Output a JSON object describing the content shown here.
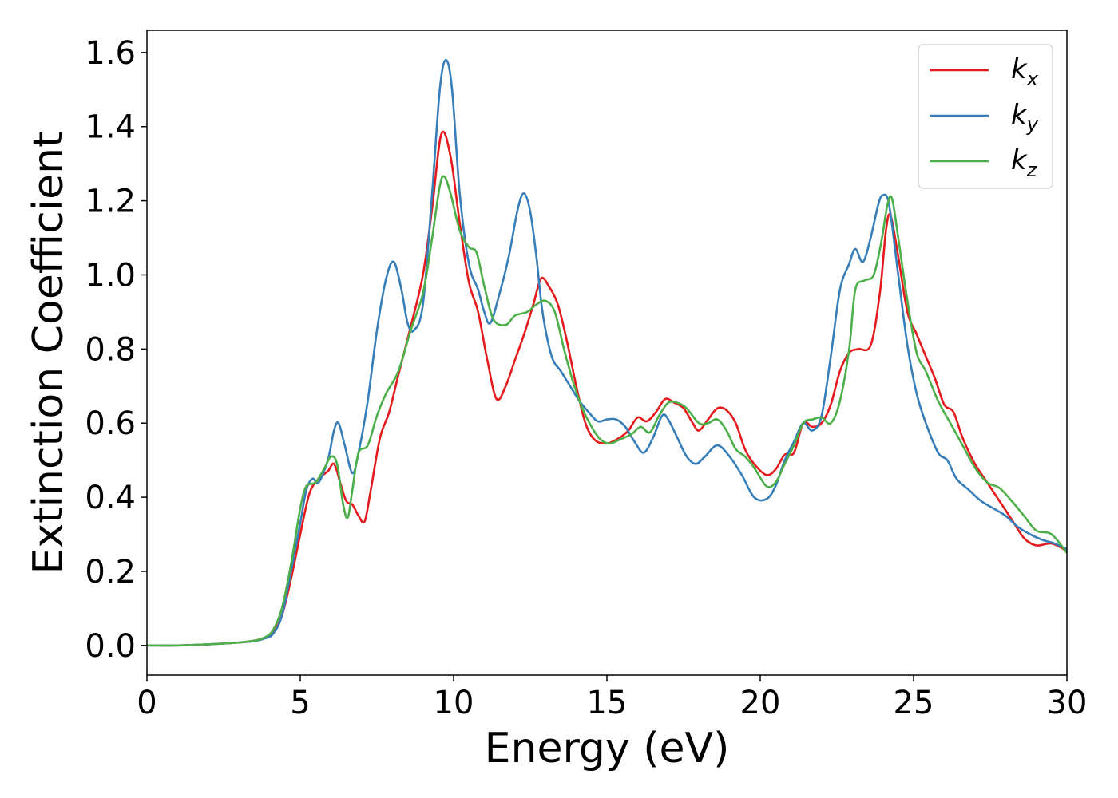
{
  "chart_data": {
    "type": "line",
    "xlabel": "Energy (eV)",
    "ylabel": "Extinction Coefficient",
    "xlim": [
      0,
      30
    ],
    "ylim": [
      -0.08,
      1.66
    ],
    "xticks": [
      0,
      5,
      10,
      15,
      20,
      25,
      30
    ],
    "xtick_labels": [
      "0",
      "5",
      "10",
      "15",
      "20",
      "25",
      "30"
    ],
    "yticks": [
      0.0,
      0.2,
      0.4,
      0.6,
      0.8,
      1.0,
      1.2,
      1.4,
      1.6
    ],
    "ytick_labels": [
      "0.0",
      "0.2",
      "0.4",
      "0.6",
      "0.8",
      "1.0",
      "1.2",
      "1.4",
      "1.6"
    ],
    "grid": false,
    "legend_position": "top-right",
    "series": [
      {
        "name": "k_x",
        "label_base": "k",
        "label_sub": "x",
        "color": "#e41a1c",
        "points": [
          [
            0,
            0.0
          ],
          [
            1,
            0.0
          ],
          [
            2,
            0.003
          ],
          [
            3,
            0.008
          ],
          [
            3.5,
            0.013
          ],
          [
            3.8,
            0.02
          ],
          [
            4.1,
            0.035
          ],
          [
            4.4,
            0.08
          ],
          [
            4.7,
            0.18
          ],
          [
            5.0,
            0.3
          ],
          [
            5.3,
            0.41
          ],
          [
            5.6,
            0.45
          ],
          [
            5.9,
            0.47
          ],
          [
            6.1,
            0.49
          ],
          [
            6.3,
            0.44
          ],
          [
            6.5,
            0.39
          ],
          [
            6.7,
            0.38
          ],
          [
            6.9,
            0.35
          ],
          [
            7.1,
            0.335
          ],
          [
            7.3,
            0.42
          ],
          [
            7.6,
            0.56
          ],
          [
            7.9,
            0.63
          ],
          [
            8.2,
            0.73
          ],
          [
            8.6,
            0.86
          ],
          [
            9.0,
            1.0
          ],
          [
            9.3,
            1.18
          ],
          [
            9.6,
            1.38
          ],
          [
            9.9,
            1.32
          ],
          [
            10.2,
            1.14
          ],
          [
            10.5,
            0.98
          ],
          [
            10.8,
            0.9
          ],
          [
            11.1,
            0.77
          ],
          [
            11.4,
            0.665
          ],
          [
            11.7,
            0.7
          ],
          [
            12.0,
            0.77
          ],
          [
            12.3,
            0.84
          ],
          [
            12.6,
            0.92
          ],
          [
            12.85,
            0.99
          ],
          [
            13.1,
            0.97
          ],
          [
            13.4,
            0.92
          ],
          [
            13.7,
            0.82
          ],
          [
            14.0,
            0.7
          ],
          [
            14.3,
            0.6
          ],
          [
            14.6,
            0.555
          ],
          [
            15.0,
            0.545
          ],
          [
            15.4,
            0.56
          ],
          [
            15.7,
            0.58
          ],
          [
            16.0,
            0.615
          ],
          [
            16.3,
            0.605
          ],
          [
            16.6,
            0.63
          ],
          [
            16.9,
            0.665
          ],
          [
            17.2,
            0.655
          ],
          [
            17.5,
            0.64
          ],
          [
            17.8,
            0.6
          ],
          [
            18.0,
            0.58
          ],
          [
            18.3,
            0.61
          ],
          [
            18.6,
            0.64
          ],
          [
            18.9,
            0.635
          ],
          [
            19.2,
            0.6
          ],
          [
            19.5,
            0.53
          ],
          [
            19.8,
            0.49
          ],
          [
            20.2,
            0.46
          ],
          [
            20.5,
            0.475
          ],
          [
            20.8,
            0.515
          ],
          [
            21.1,
            0.52
          ],
          [
            21.4,
            0.6
          ],
          [
            21.7,
            0.59
          ],
          [
            22.0,
            0.6
          ],
          [
            22.3,
            0.65
          ],
          [
            22.6,
            0.74
          ],
          [
            22.9,
            0.79
          ],
          [
            23.2,
            0.8
          ],
          [
            23.6,
            0.81
          ],
          [
            23.9,
            0.95
          ],
          [
            24.1,
            1.12
          ],
          [
            24.25,
            1.16
          ],
          [
            24.5,
            1.05
          ],
          [
            24.8,
            0.9
          ],
          [
            25.1,
            0.84
          ],
          [
            25.4,
            0.78
          ],
          [
            25.7,
            0.72
          ],
          [
            26.0,
            0.65
          ],
          [
            26.3,
            0.63
          ],
          [
            26.6,
            0.56
          ],
          [
            27.0,
            0.49
          ],
          [
            27.4,
            0.44
          ],
          [
            27.8,
            0.39
          ],
          [
            28.2,
            0.34
          ],
          [
            28.6,
            0.29
          ],
          [
            29.0,
            0.27
          ],
          [
            29.5,
            0.275
          ],
          [
            30.0,
            0.255
          ]
        ]
      },
      {
        "name": "k_y",
        "label_base": "k",
        "label_sub": "y",
        "color": "#377eb8",
        "points": [
          [
            0,
            0.0
          ],
          [
            1,
            0.0
          ],
          [
            2,
            0.003
          ],
          [
            3,
            0.008
          ],
          [
            3.5,
            0.012
          ],
          [
            3.8,
            0.018
          ],
          [
            4.1,
            0.03
          ],
          [
            4.4,
            0.08
          ],
          [
            4.7,
            0.2
          ],
          [
            5.0,
            0.33
          ],
          [
            5.2,
            0.42
          ],
          [
            5.4,
            0.45
          ],
          [
            5.6,
            0.44
          ],
          [
            5.9,
            0.5
          ],
          [
            6.1,
            0.58
          ],
          [
            6.25,
            0.6
          ],
          [
            6.45,
            0.54
          ],
          [
            6.7,
            0.465
          ],
          [
            6.9,
            0.52
          ],
          [
            7.2,
            0.66
          ],
          [
            7.5,
            0.85
          ],
          [
            7.8,
            0.99
          ],
          [
            8.05,
            1.035
          ],
          [
            8.3,
            0.96
          ],
          [
            8.5,
            0.87
          ],
          [
            8.7,
            0.85
          ],
          [
            9.0,
            0.92
          ],
          [
            9.3,
            1.22
          ],
          [
            9.55,
            1.5
          ],
          [
            9.75,
            1.58
          ],
          [
            9.95,
            1.5
          ],
          [
            10.2,
            1.22
          ],
          [
            10.5,
            1.03
          ],
          [
            10.8,
            0.96
          ],
          [
            11.0,
            0.9
          ],
          [
            11.2,
            0.87
          ],
          [
            11.5,
            0.95
          ],
          [
            11.8,
            1.05
          ],
          [
            12.1,
            1.18
          ],
          [
            12.3,
            1.22
          ],
          [
            12.5,
            1.17
          ],
          [
            12.7,
            1.05
          ],
          [
            12.9,
            0.9
          ],
          [
            13.2,
            0.78
          ],
          [
            13.5,
            0.74
          ],
          [
            13.8,
            0.7
          ],
          [
            14.1,
            0.66
          ],
          [
            14.4,
            0.63
          ],
          [
            14.7,
            0.605
          ],
          [
            15.0,
            0.61
          ],
          [
            15.3,
            0.61
          ],
          [
            15.6,
            0.59
          ],
          [
            15.9,
            0.55
          ],
          [
            16.2,
            0.52
          ],
          [
            16.5,
            0.56
          ],
          [
            16.8,
            0.62
          ],
          [
            17.0,
            0.61
          ],
          [
            17.3,
            0.56
          ],
          [
            17.6,
            0.51
          ],
          [
            17.9,
            0.49
          ],
          [
            18.2,
            0.51
          ],
          [
            18.6,
            0.54
          ],
          [
            19.0,
            0.51
          ],
          [
            19.4,
            0.46
          ],
          [
            19.8,
            0.4
          ],
          [
            20.2,
            0.395
          ],
          [
            20.5,
            0.43
          ],
          [
            20.8,
            0.5
          ],
          [
            21.1,
            0.55
          ],
          [
            21.4,
            0.6
          ],
          [
            21.7,
            0.58
          ],
          [
            22.0,
            0.62
          ],
          [
            22.3,
            0.78
          ],
          [
            22.6,
            0.96
          ],
          [
            22.9,
            1.03
          ],
          [
            23.1,
            1.07
          ],
          [
            23.35,
            1.035
          ],
          [
            23.6,
            1.1
          ],
          [
            23.85,
            1.19
          ],
          [
            24.0,
            1.215
          ],
          [
            24.2,
            1.19
          ],
          [
            24.5,
            1.0
          ],
          [
            24.8,
            0.81
          ],
          [
            25.1,
            0.68
          ],
          [
            25.4,
            0.6
          ],
          [
            25.8,
            0.52
          ],
          [
            26.1,
            0.5
          ],
          [
            26.4,
            0.45
          ],
          [
            26.8,
            0.42
          ],
          [
            27.2,
            0.39
          ],
          [
            27.6,
            0.37
          ],
          [
            28.0,
            0.35
          ],
          [
            28.4,
            0.32
          ],
          [
            28.8,
            0.3
          ],
          [
            29.2,
            0.285
          ],
          [
            29.6,
            0.275
          ],
          [
            30.0,
            0.26
          ]
        ]
      },
      {
        "name": "k_z",
        "label_base": "k",
        "label_sub": "z",
        "color": "#4daf4a",
        "points": [
          [
            0,
            0.0
          ],
          [
            1,
            0.0
          ],
          [
            2,
            0.003
          ],
          [
            3,
            0.008
          ],
          [
            3.5,
            0.013
          ],
          [
            3.8,
            0.02
          ],
          [
            4.1,
            0.04
          ],
          [
            4.4,
            0.1
          ],
          [
            4.7,
            0.22
          ],
          [
            5.0,
            0.37
          ],
          [
            5.2,
            0.43
          ],
          [
            5.5,
            0.44
          ],
          [
            5.8,
            0.48
          ],
          [
            6.0,
            0.51
          ],
          [
            6.2,
            0.49
          ],
          [
            6.4,
            0.38
          ],
          [
            6.55,
            0.345
          ],
          [
            6.7,
            0.42
          ],
          [
            6.9,
            0.52
          ],
          [
            7.2,
            0.54
          ],
          [
            7.5,
            0.62
          ],
          [
            7.8,
            0.68
          ],
          [
            8.2,
            0.74
          ],
          [
            8.6,
            0.85
          ],
          [
            9.0,
            0.95
          ],
          [
            9.3,
            1.1
          ],
          [
            9.55,
            1.24
          ],
          [
            9.7,
            1.265
          ],
          [
            9.9,
            1.22
          ],
          [
            10.2,
            1.12
          ],
          [
            10.5,
            1.075
          ],
          [
            10.75,
            1.06
          ],
          [
            11.0,
            0.97
          ],
          [
            11.3,
            0.88
          ],
          [
            11.7,
            0.865
          ],
          [
            12.0,
            0.89
          ],
          [
            12.4,
            0.9
          ],
          [
            12.7,
            0.92
          ],
          [
            13.0,
            0.93
          ],
          [
            13.3,
            0.9
          ],
          [
            13.6,
            0.8
          ],
          [
            13.9,
            0.71
          ],
          [
            14.2,
            0.64
          ],
          [
            14.5,
            0.59
          ],
          [
            14.8,
            0.555
          ],
          [
            15.1,
            0.545
          ],
          [
            15.4,
            0.555
          ],
          [
            15.8,
            0.57
          ],
          [
            16.1,
            0.59
          ],
          [
            16.4,
            0.575
          ],
          [
            16.7,
            0.62
          ],
          [
            17.0,
            0.655
          ],
          [
            17.3,
            0.655
          ],
          [
            17.6,
            0.64
          ],
          [
            18.0,
            0.6
          ],
          [
            18.3,
            0.6
          ],
          [
            18.6,
            0.61
          ],
          [
            18.9,
            0.58
          ],
          [
            19.2,
            0.53
          ],
          [
            19.5,
            0.51
          ],
          [
            19.8,
            0.48
          ],
          [
            20.2,
            0.43
          ],
          [
            20.5,
            0.44
          ],
          [
            20.8,
            0.49
          ],
          [
            21.1,
            0.54
          ],
          [
            21.4,
            0.6
          ],
          [
            21.7,
            0.61
          ],
          [
            22.0,
            0.615
          ],
          [
            22.3,
            0.6
          ],
          [
            22.6,
            0.66
          ],
          [
            22.9,
            0.8
          ],
          [
            23.1,
            0.96
          ],
          [
            23.4,
            0.985
          ],
          [
            23.7,
            1.0
          ],
          [
            23.95,
            1.09
          ],
          [
            24.15,
            1.19
          ],
          [
            24.3,
            1.205
          ],
          [
            24.5,
            1.1
          ],
          [
            24.8,
            0.93
          ],
          [
            25.1,
            0.79
          ],
          [
            25.4,
            0.74
          ],
          [
            25.8,
            0.66
          ],
          [
            26.2,
            0.6
          ],
          [
            26.6,
            0.54
          ],
          [
            27.0,
            0.48
          ],
          [
            27.4,
            0.44
          ],
          [
            27.8,
            0.425
          ],
          [
            28.2,
            0.39
          ],
          [
            28.6,
            0.35
          ],
          [
            29.0,
            0.31
          ],
          [
            29.5,
            0.3
          ],
          [
            30.0,
            0.25
          ]
        ]
      }
    ]
  }
}
